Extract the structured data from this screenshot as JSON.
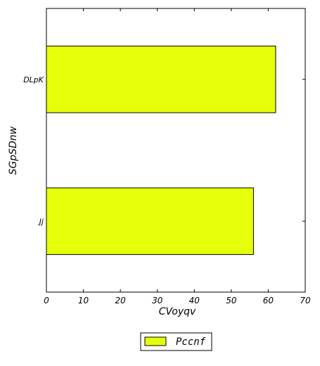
{
  "chart_data": {
    "type": "bar",
    "orientation": "horizontal",
    "categories": [
      "Jj",
      "DLpK"
    ],
    "series": [
      {
        "name": "Pccnf",
        "values": [
          56,
          62
        ],
        "color": "#e5ff0b"
      }
    ],
    "title": "",
    "xlabel": "CVoyqv",
    "ylabel": "SGpSDnw",
    "xlim": [
      0,
      70
    ],
    "xticks": [
      0,
      10,
      20,
      30,
      40,
      50,
      60,
      70
    ],
    "grid": false,
    "legend_position": "bottom-center"
  }
}
